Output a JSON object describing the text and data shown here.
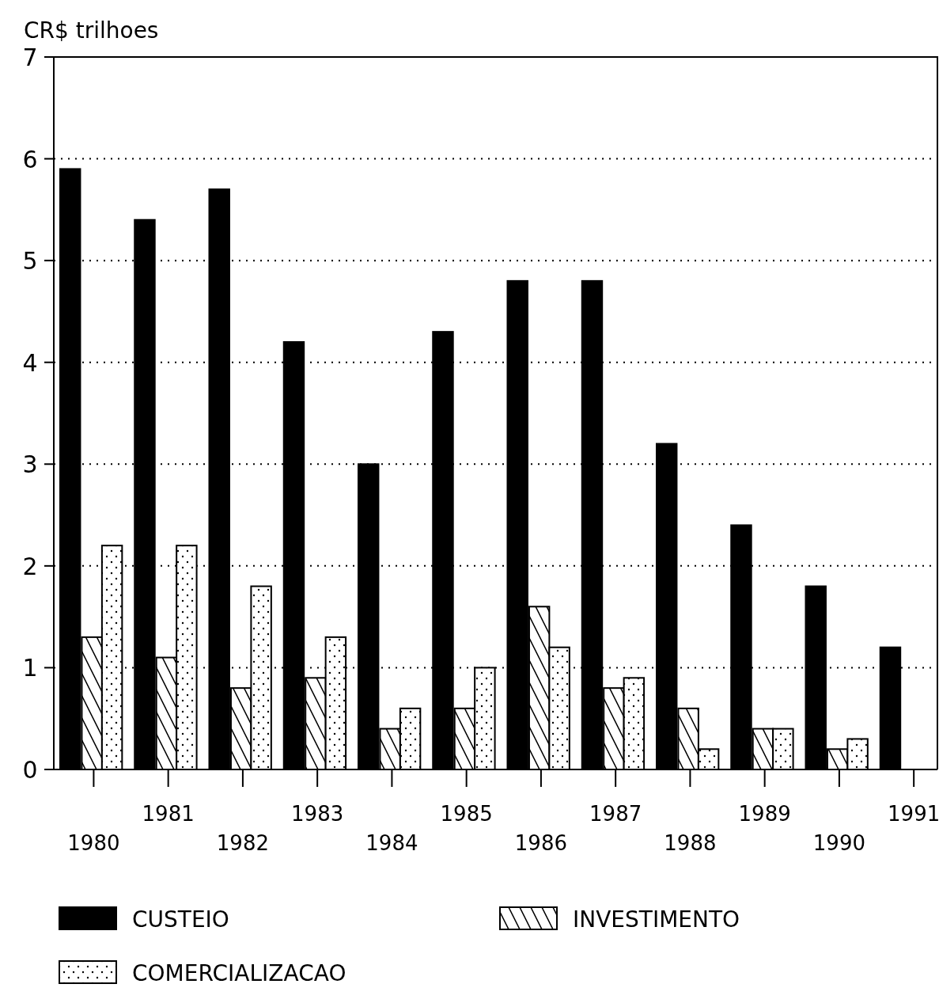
{
  "chart_data": {
    "type": "bar",
    "ylabel": "CR$ trilhoes",
    "categories": [
      "1980",
      "1981",
      "1982",
      "1983",
      "1984",
      "1985",
      "1986",
      "1987",
      "1988",
      "1989",
      "1990",
      "1991"
    ],
    "series": [
      {
        "name": "CUSTEIO",
        "color": "#000000",
        "values": [
          5.9,
          5.4,
          5.7,
          4.2,
          3.0,
          4.3,
          4.8,
          4.8,
          3.2,
          2.4,
          1.8,
          1.2
        ]
      },
      {
        "name": "INVESTIMENTO",
        "color": "#000000",
        "values": [
          1.3,
          1.1,
          0.8,
          0.9,
          0.4,
          0.6,
          1.6,
          0.8,
          0.6,
          0.4,
          0.2,
          0
        ]
      },
      {
        "name": "COMERCIALIZACAO",
        "color": "#000000",
        "values": [
          2.2,
          2.2,
          1.8,
          1.3,
          0.6,
          1.0,
          1.2,
          0.9,
          0.2,
          0.4,
          0.3,
          0
        ]
      }
    ],
    "ylim": [
      0,
      7
    ],
    "yticks": [
      0,
      1,
      2,
      3,
      4,
      5,
      6,
      7
    ],
    "grid": "y",
    "legend": "bottom"
  }
}
